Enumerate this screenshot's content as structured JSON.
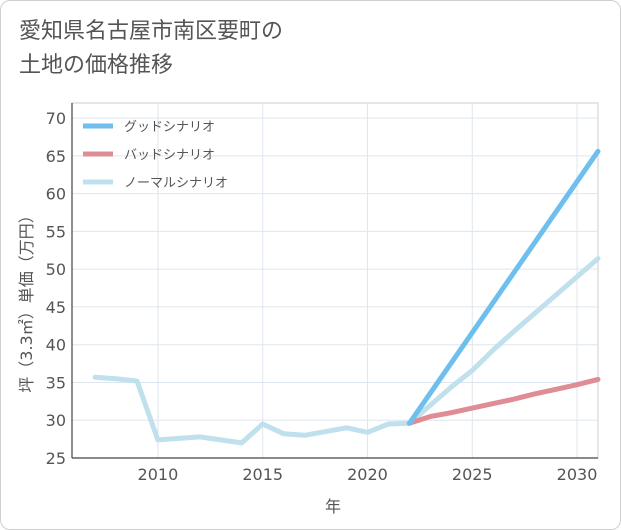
{
  "title_line1": "愛知県名古屋市南区要町の",
  "title_line2": "土地の価格推移",
  "chart_data": {
    "type": "line",
    "xlabel": "年",
    "ylabel": "坪（3.3㎡）単価（万円）",
    "xlim": [
      2005.9,
      2031
    ],
    "ylim": [
      25,
      72
    ],
    "xticks": [
      2010,
      2015,
      2020,
      2025,
      2030
    ],
    "yticks": [
      25,
      30,
      35,
      40,
      45,
      50,
      55,
      60,
      65,
      70
    ],
    "grid": true,
    "legend_position": "top-left",
    "series": [
      {
        "name": "グッドシナリオ",
        "color": "#6ebfee",
        "x": [
          2022,
          2031
        ],
        "y": [
          29.6,
          65.6
        ]
      },
      {
        "name": "バッドシナリオ",
        "color": "#df8c94",
        "x": [
          2022,
          2023,
          2024,
          2025,
          2026,
          2027,
          2028,
          2029,
          2030,
          2031
        ],
        "y": [
          29.6,
          30.5,
          31.0,
          31.6,
          32.2,
          32.8,
          33.5,
          34.1,
          34.7,
          35.4
        ]
      },
      {
        "name": "ノーマルシナリオ",
        "color": "#bfe0ec",
        "x": [
          2007,
          2008,
          2009,
          2010,
          2011,
          2012,
          2013,
          2014,
          2015,
          2016,
          2017,
          2018,
          2019,
          2020,
          2021,
          2022,
          2023,
          2024,
          2025,
          2026,
          2027,
          2028,
          2029,
          2030,
          2031
        ],
        "y": [
          35.7,
          35.5,
          35.2,
          27.4,
          27.6,
          27.8,
          27.4,
          27.0,
          29.5,
          28.2,
          28.0,
          28.5,
          29.0,
          28.4,
          29.5,
          29.6,
          32.0,
          34.4,
          36.6,
          39.3,
          41.8,
          44.2,
          46.6,
          49.0,
          51.4
        ]
      }
    ]
  }
}
